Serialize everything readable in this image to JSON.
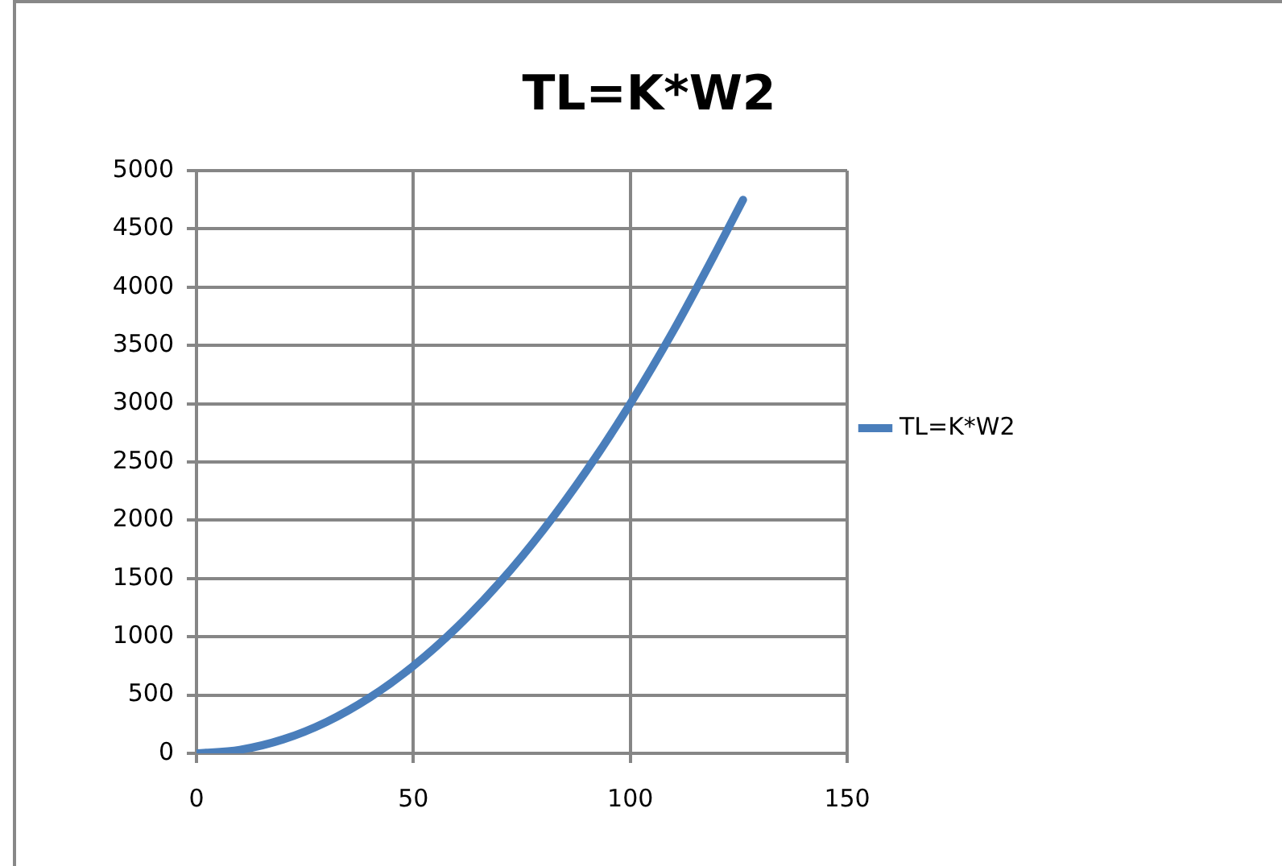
{
  "chart_data": {
    "type": "line",
    "title": "TL=K*W2",
    "x": [
      0,
      10,
      20,
      30,
      40,
      50,
      60,
      70,
      80,
      90,
      100,
      110,
      120,
      126
    ],
    "series": [
      {
        "name": "TL=K*W2",
        "color": "#4a7ebb",
        "values": [
          0,
          30,
          120,
          270,
          480,
          750,
          1080,
          1470,
          1920,
          2430,
          3000,
          3630,
          4320,
          4750
        ]
      }
    ],
    "xlim": [
      0,
      150
    ],
    "xticks": [
      0,
      50,
      100,
      150
    ],
    "ylim": [
      0,
      5000
    ],
    "yticks": [
      0,
      500,
      1000,
      1500,
      2000,
      2500,
      3000,
      3500,
      4000,
      4500,
      5000
    ],
    "grid": true,
    "legend": "right",
    "marker": "none",
    "line_style": "solid"
  }
}
